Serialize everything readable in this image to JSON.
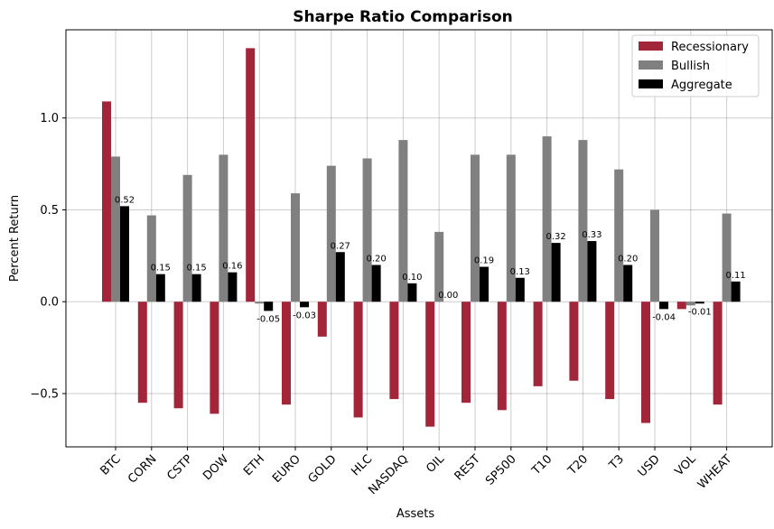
{
  "chart_data": {
    "type": "bar",
    "title": "Sharpe Ratio Comparison",
    "xlabel": "Assets",
    "ylabel": "Percent Return",
    "ylim": [
      -0.79,
      1.48
    ],
    "yticks": [
      -0.5,
      0.0,
      0.5,
      1.0
    ],
    "ytick_labels": [
      "−0.5",
      "0.0",
      "0.5",
      "1.0"
    ],
    "grid": true,
    "legend_position": "top-right",
    "categories": [
      "BTC",
      "CORN",
      "CSTP",
      "DOW",
      "ETH",
      "EURO",
      "GOLD",
      "HLC",
      "NASDAQ",
      "OIL",
      "REST",
      "SP500",
      "T10",
      "T20",
      "T3",
      "USD",
      "VOL",
      "WHEAT"
    ],
    "series": [
      {
        "name": "Recessionary",
        "color": "#a2253a",
        "values": [
          1.09,
          -0.55,
          -0.58,
          -0.61,
          1.38,
          -0.56,
          -0.19,
          -0.63,
          -0.53,
          -0.68,
          -0.55,
          -0.59,
          -0.46,
          -0.43,
          -0.53,
          -0.66,
          -0.04,
          -0.56
        ]
      },
      {
        "name": "Bullish",
        "color": "#808080",
        "values": [
          0.79,
          0.47,
          0.69,
          0.8,
          -0.01,
          0.59,
          0.74,
          0.78,
          0.88,
          0.38,
          0.8,
          0.8,
          0.9,
          0.88,
          0.72,
          0.5,
          -0.02,
          0.48
        ]
      },
      {
        "name": "Aggregate",
        "color": "#000000",
        "values": [
          0.52,
          0.15,
          0.15,
          0.16,
          -0.05,
          -0.03,
          0.27,
          0.2,
          0.1,
          0.0,
          0.19,
          0.13,
          0.32,
          0.33,
          0.2,
          -0.04,
          -0.01,
          0.11
        ],
        "labels": [
          "0.52",
          "0.15",
          "0.15",
          "0.16",
          "-0.05",
          "-0.03",
          "0.27",
          "0.20",
          "0.10",
          "0.00",
          "0.19",
          "0.13",
          "0.32",
          "0.33",
          "0.20",
          "-0.04",
          "-0.01",
          "0.11"
        ]
      }
    ]
  }
}
